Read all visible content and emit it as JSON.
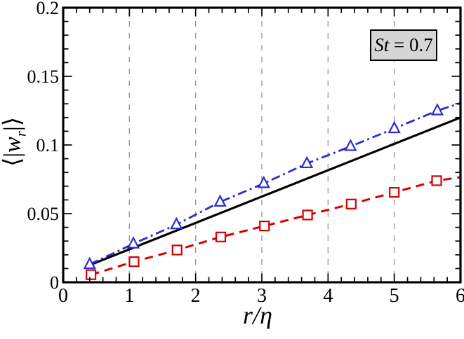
{
  "figure": {
    "background": "#ffffff",
    "legend": {
      "label_italic": "St",
      "label_rest": " = 0.7",
      "bg": "#d6d6d6",
      "border": "#000000"
    },
    "xaxis": {
      "title_italic": "r",
      "title_rest": "/η",
      "tick_labels": [
        "0",
        "1",
        "2",
        "3",
        "4",
        "5",
        "6"
      ],
      "tick_values": [
        0,
        1,
        2,
        3,
        4,
        5,
        6
      ],
      "minor_step": 0.2
    },
    "yaxis": {
      "title_pre": "⟨|",
      "title_w": "w",
      "title_sub": "r",
      "title_post": "|⟩",
      "tick_labels": [
        "0",
        "0.05",
        "0.1",
        "0.15",
        "0.2"
      ],
      "tick_values": [
        0,
        0.05,
        0.1,
        0.15,
        0.2
      ],
      "minor_step": 0.01
    },
    "grid": {
      "x_positions": [
        1,
        2,
        3,
        4,
        5
      ],
      "color": "#9a9a9a"
    }
  },
  "chart_data": {
    "type": "line",
    "title": "",
    "xlabel": "r/η",
    "ylabel": "⟨|w_r|⟩",
    "xlim": [
      0,
      6
    ],
    "ylim": [
      0,
      0.2
    ],
    "grid": "vertical-dashed-at-integers",
    "legend_box": "St = 0.7",
    "legend_position": "top-right",
    "series": [
      {
        "name": "solid-black-line",
        "color": "#000000",
        "line_style": "solid",
        "line_width": 3.2,
        "marker": "none",
        "x": [
          0.4,
          6.0
        ],
        "y": [
          0.0125,
          0.12
        ],
        "marker_x": [],
        "marker_y": []
      },
      {
        "name": "blue-dashdot-triangles",
        "color": "#2c2cd2",
        "line_style": "dash-dot",
        "line_width": 2.8,
        "marker": "triangle",
        "x": [
          0.4,
          1.06,
          1.71,
          2.37,
          3.03,
          3.68,
          4.34,
          5.0,
          5.65,
          6.0
        ],
        "y": [
          0.013,
          0.028,
          0.042,
          0.0585,
          0.072,
          0.0865,
          0.099,
          0.112,
          0.125,
          0.1305
        ],
        "marker_x": [
          0.4,
          1.06,
          1.71,
          2.37,
          3.03,
          3.68,
          4.34,
          5.0,
          5.65
        ],
        "marker_y": [
          0.013,
          0.028,
          0.042,
          0.0585,
          0.072,
          0.0865,
          0.099,
          0.112,
          0.125
        ]
      },
      {
        "name": "red-dashed-squares",
        "color": "#d40000",
        "line_style": "dashed",
        "line_width": 3.0,
        "marker": "square",
        "x": [
          0.42,
          1.07,
          1.72,
          2.38,
          3.04,
          3.69,
          4.35,
          5.0,
          5.64,
          6.0
        ],
        "y": [
          0.0055,
          0.015,
          0.0235,
          0.033,
          0.041,
          0.049,
          0.057,
          0.0655,
          0.074,
          0.0765
        ],
        "marker_x": [
          0.42,
          1.07,
          1.72,
          2.38,
          3.04,
          3.69,
          4.35,
          5.0,
          5.64
        ],
        "marker_y": [
          0.0055,
          0.015,
          0.0235,
          0.033,
          0.041,
          0.049,
          0.057,
          0.0655,
          0.074
        ]
      }
    ]
  }
}
